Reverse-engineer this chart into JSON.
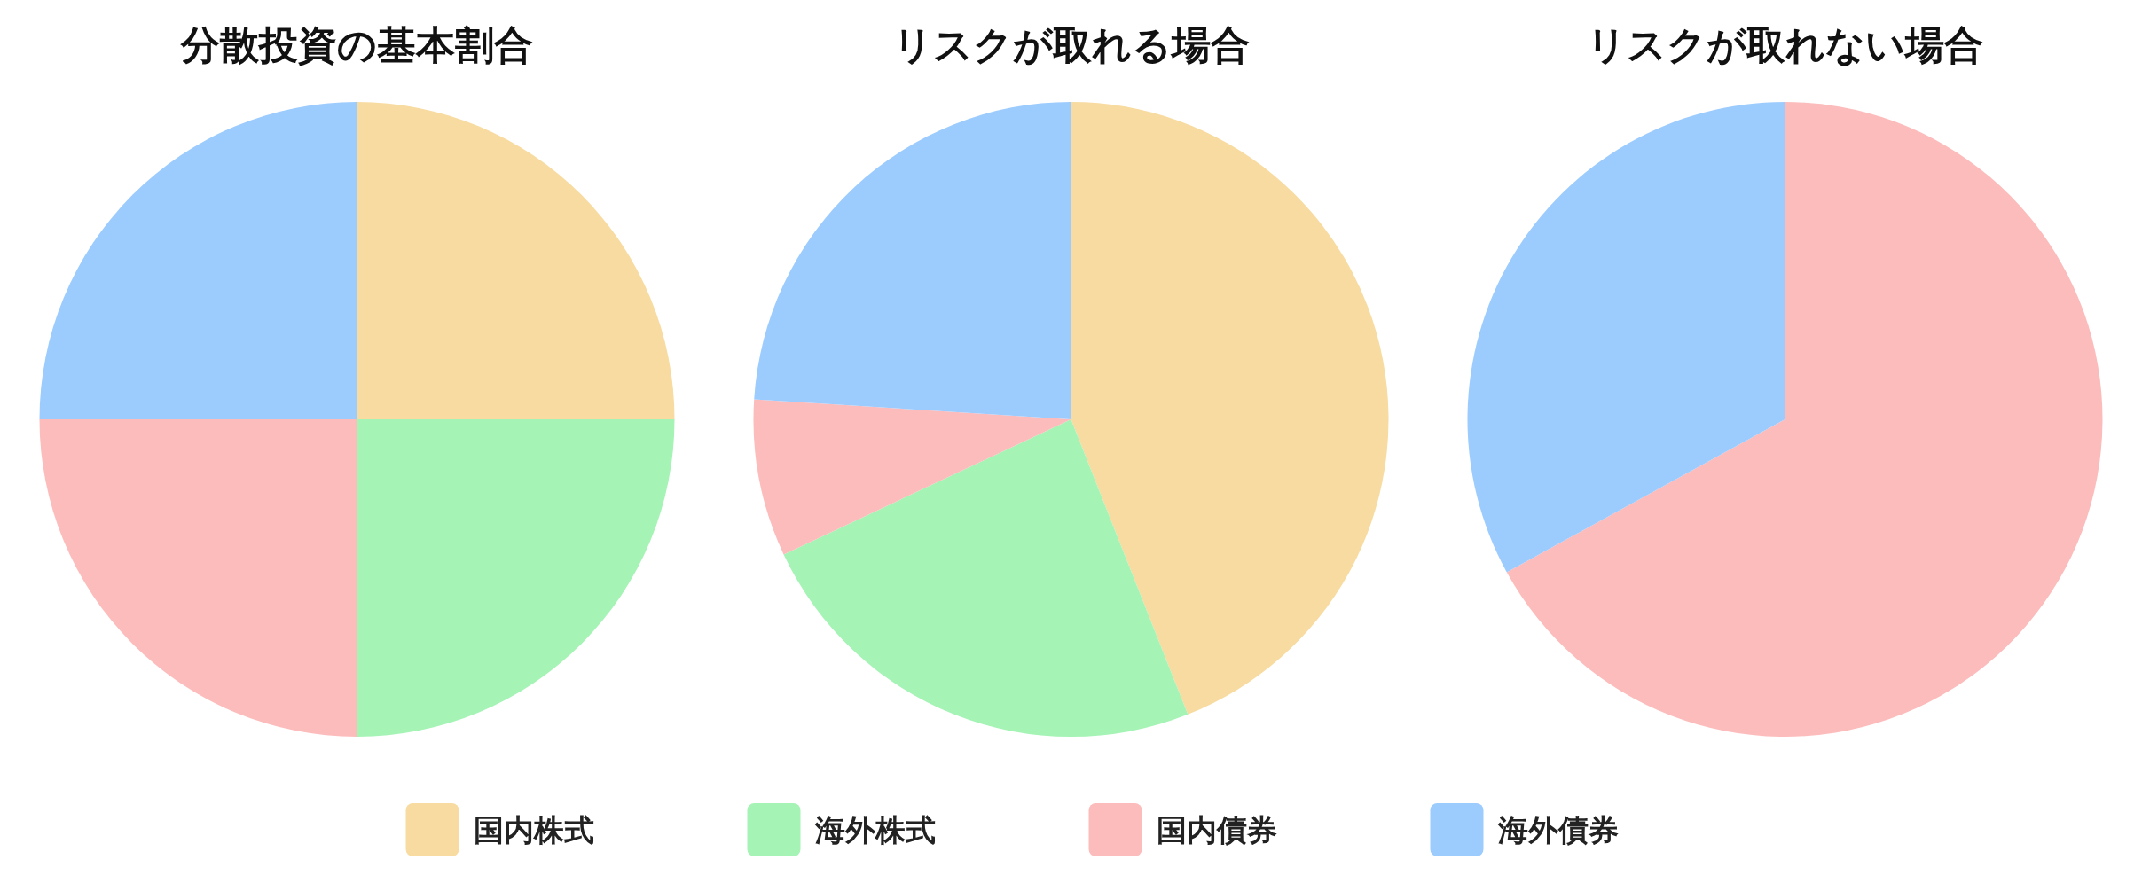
{
  "chart_data": {
    "type": "pie",
    "categories": [
      "国内株式",
      "海外株式",
      "国内債券",
      "海外債券"
    ],
    "colors": [
      "#f8dba0",
      "#a5f3b5",
      "#fdbcbc",
      "#9ccbfe"
    ],
    "legend": "bottom",
    "series": [
      {
        "name": "分散投資の基本割合",
        "values": [
          25,
          25,
          25,
          25
        ]
      },
      {
        "name": "リスクが取れる場合",
        "values": [
          44,
          24,
          8,
          24
        ]
      },
      {
        "name": "リスクが取れない場合",
        "values": [
          0,
          0,
          67,
          33
        ]
      }
    ]
  }
}
